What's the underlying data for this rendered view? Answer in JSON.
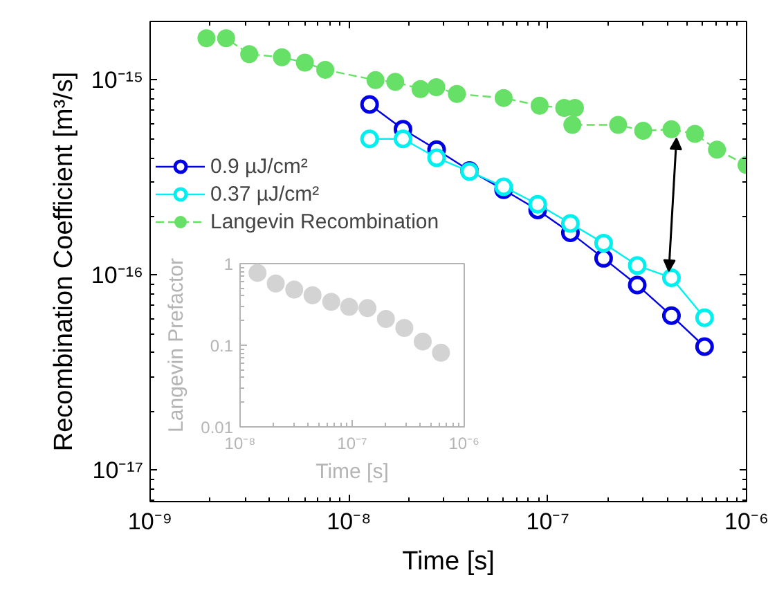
{
  "chart_data": [
    {
      "type": "line",
      "xlabel": "Time [s]",
      "ylabel": "Recombination Coefficient [m³/s]",
      "log": "xy",
      "xlim": [
        1e-09,
        1e-06
      ],
      "xticks": [
        {
          "value": 1e-09,
          "label": "10⁻⁹"
        },
        {
          "value": 1e-08,
          "label": "10⁻⁸"
        },
        {
          "value": 1e-07,
          "label": "10⁻⁷"
        },
        {
          "value": 1e-06,
          "label": "10⁻⁶"
        }
      ],
      "ylim": [
        6.9e-18,
        2e-15
      ],
      "yticks": [
        {
          "value": 1e-17,
          "label": "10⁻¹⁷"
        },
        {
          "value": 1e-16,
          "label": "10⁻¹⁶"
        },
        {
          "value": 1e-15,
          "label": "10⁻¹⁵"
        }
      ],
      "grid": false,
      "legend": "top left",
      "series": [
        {
          "name": "0.9 µJ/cm²",
          "color": "#0000e6",
          "marker": "circle_open",
          "line_style": "solid",
          "x": [
            1.27e-08,
            1.87e-08,
            2.76e-08,
            4.04e-08,
            6e-08,
            8.9e-08,
            1.3e-07,
            1.91e-07,
            2.82e-07,
            4.19e-07,
            6.15e-07
          ],
          "values": [
            7.5e-16,
            5.6e-16,
            4.4e-16,
            3.44e-16,
            2.74e-16,
            2.16e-16,
            1.65e-16,
            1.22e-16,
            8.9e-17,
            6.2e-17,
            4.3e-17
          ]
        },
        {
          "name": "0.37 µJ/cm²",
          "color": "#00f0f0",
          "marker": "circle_open",
          "line_style": "solid",
          "x": [
            1.27e-08,
            1.87e-08,
            2.76e-08,
            4.04e-08,
            6e-08,
            8.9e-08,
            1.3e-07,
            1.91e-07,
            2.82e-07,
            4.19e-07,
            6.15e-07
          ],
          "values": [
            5e-16,
            5e-16,
            4e-16,
            3.4e-16,
            2.84e-16,
            2.31e-16,
            1.84e-16,
            1.46e-16,
            1.12e-16,
            9.7e-17,
            6.05e-17
          ]
        },
        {
          "name": "Langevin Recombination",
          "color": "#66e066",
          "marker": "circle",
          "line_style": "dashed",
          "x": [
            1.92e-09,
            2.41e-09,
            3.15e-09,
            4.6e-09,
            6e-09,
            7.6e-09,
            1.36e-08,
            1.71e-08,
            2.29e-08,
            2.75e-08,
            3.49e-08,
            6e-08,
            9.1e-08,
            1.21e-07,
            1.37e-07,
            1.33e-07,
            2.26e-07,
            3.02e-07,
            4.19e-07,
            5.5e-07,
            7.1e-07,
            1e-06
          ],
          "values": [
            1.64e-15,
            1.64e-15,
            1.36e-15,
            1.31e-15,
            1.23e-15,
            1.13e-15,
            1e-15,
            9.8e-16,
            9e-16,
            9.2e-16,
            8.5e-16,
            8.1e-16,
            7.4e-16,
            7.2e-16,
            7.2e-16,
            5.9e-16,
            5.9e-16,
            5.5e-16,
            5.6e-16,
            5.3e-16,
            4.4e-16,
            3.67e-16
          ]
        }
      ]
    },
    {
      "type": "scatter",
      "xlabel": "Time [s]",
      "ylabel": "Langevin Prefactor",
      "log": "xy",
      "xlim": [
        1e-08,
        1e-06
      ],
      "xticks": [
        {
          "value": 1e-08,
          "label": "10⁻⁸"
        },
        {
          "value": 1e-07,
          "label": "10⁻⁷"
        },
        {
          "value": 1e-06,
          "label": "10⁻⁶"
        }
      ],
      "ylim": [
        0.01,
        1
      ],
      "yticks": [
        0.01,
        0.1,
        1
      ],
      "grid": false,
      "marker": "circle",
      "series": [
        {
          "color": "#d3d3d3",
          "x": [
            1.43e-08,
            2.08e-08,
            3.04e-08,
            4.43e-08,
            6.5e-08,
            9.4e-08,
            1.37e-07,
            2e-07,
            2.92e-07,
            4.26e-07,
            6.2e-07
          ],
          "values": [
            0.77,
            0.57,
            0.48,
            0.41,
            0.34,
            0.295,
            0.285,
            0.21,
            0.163,
            0.111,
            0.081
          ]
        }
      ]
    }
  ]
}
